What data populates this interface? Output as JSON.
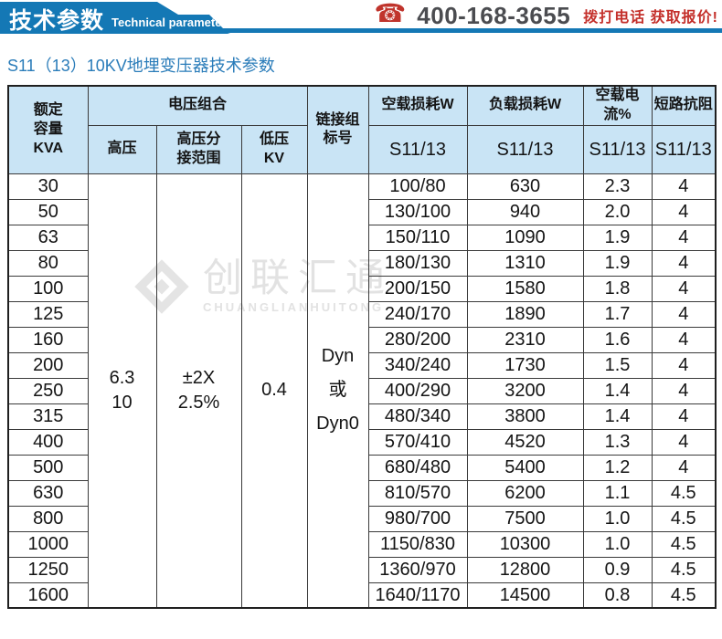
{
  "header": {
    "banner_title": "技术参数",
    "banner_subtitle": "Technical parameter",
    "phone_number": "400-168-3655",
    "phone_cta": "拨打电话 获取报价!"
  },
  "icons": {
    "phone": "☎"
  },
  "page_title": "S11（13）10KV地埋变压器技术参数",
  "watermark": {
    "name_cn": "创联汇通",
    "name_en": "CHUANGLIANHUITONG"
  },
  "colors": {
    "banner_blue": "#1478b5",
    "title_blue": "#2a7cb9",
    "table_header_bg": "#c9e4f5",
    "accent_red": "#c4302b",
    "phone_gray": "#4b4c50",
    "watermark_gray": "#e2e2e2"
  },
  "table": {
    "headers": {
      "capacity": "额定\n容量\nKVA",
      "voltage_group": "电压组合",
      "hv": "高压",
      "hv_tap": "高压分\n接范围",
      "lv": "低压\nKV",
      "connection": "链接组\n标号",
      "no_load_loss": "空载损耗W",
      "load_loss": "负载损耗W",
      "no_load_current": "空载电流%",
      "impedance": "短路抗阻",
      "model": "S11/13"
    },
    "merged": {
      "hv_value": "6.3\n10",
      "tap_value": "±2X\n2.5%",
      "lv_value": "0.4",
      "connection_value": "Dyn\n或\nDyn0"
    },
    "rows": [
      {
        "kva": "30",
        "no_load_loss": "100/80",
        "load_loss": "630",
        "no_load_current": "2.3",
        "impedance": "4"
      },
      {
        "kva": "50",
        "no_load_loss": "130/100",
        "load_loss": "940",
        "no_load_current": "2.0",
        "impedance": "4"
      },
      {
        "kva": "63",
        "no_load_loss": "150/110",
        "load_loss": "1090",
        "no_load_current": "1.9",
        "impedance": "4"
      },
      {
        "kva": "80",
        "no_load_loss": "180/130",
        "load_loss": "1310",
        "no_load_current": "1.9",
        "impedance": "4"
      },
      {
        "kva": "100",
        "no_load_loss": "200/150",
        "load_loss": "1580",
        "no_load_current": "1.8",
        "impedance": "4"
      },
      {
        "kva": "125",
        "no_load_loss": "240/170",
        "load_loss": "1890",
        "no_load_current": "1.7",
        "impedance": "4"
      },
      {
        "kva": "160",
        "no_load_loss": "280/200",
        "load_loss": "2310",
        "no_load_current": "1.6",
        "impedance": "4"
      },
      {
        "kva": "200",
        "no_load_loss": "340/240",
        "load_loss": "1730",
        "no_load_current": "1.5",
        "impedance": "4"
      },
      {
        "kva": "250",
        "no_load_loss": "400/290",
        "load_loss": "3200",
        "no_load_current": "1.4",
        "impedance": "4"
      },
      {
        "kva": "315",
        "no_load_loss": "480/340",
        "load_loss": "3800",
        "no_load_current": "1.4",
        "impedance": "4"
      },
      {
        "kva": "400",
        "no_load_loss": "570/410",
        "load_loss": "4520",
        "no_load_current": "1.3",
        "impedance": "4"
      },
      {
        "kva": "500",
        "no_load_loss": "680/480",
        "load_loss": "5400",
        "no_load_current": "1.2",
        "impedance": "4"
      },
      {
        "kva": "630",
        "no_load_loss": "810/570",
        "load_loss": "6200",
        "no_load_current": "1.1",
        "impedance": "4.5"
      },
      {
        "kva": "800",
        "no_load_loss": "980/700",
        "load_loss": "7500",
        "no_load_current": "1.0",
        "impedance": "4.5"
      },
      {
        "kva": "1000",
        "no_load_loss": "1150/830",
        "load_loss": "10300",
        "no_load_current": "1.0",
        "impedance": "4.5"
      },
      {
        "kva": "1250",
        "no_load_loss": "1360/970",
        "load_loss": "12800",
        "no_load_current": "0.9",
        "impedance": "4.5"
      },
      {
        "kva": "1600",
        "no_load_loss": "1640/1170",
        "load_loss": "14500",
        "no_load_current": "0.8",
        "impedance": "4.5"
      }
    ]
  }
}
